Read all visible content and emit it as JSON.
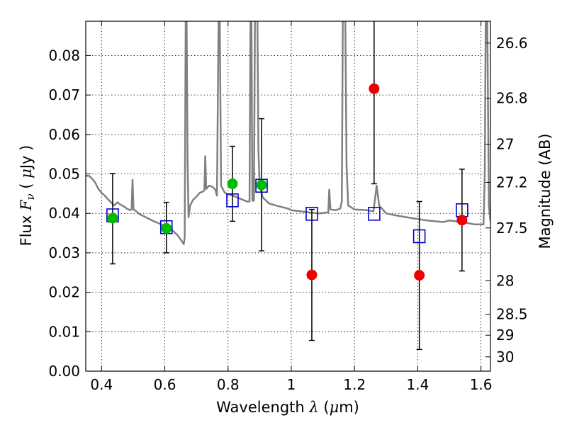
{
  "chart_data": {
    "type": "scatter",
    "xlabel": {
      "prefix": "Wavelength  ",
      "symbol": "λ",
      "unit_open": " (",
      "unit_mu": "μ",
      "unit_rest": "m)"
    },
    "ylabel": {
      "prefix": "Flux  ",
      "symbol": "F",
      "sub": "ν",
      "unit_open": "  ( ",
      "unit_mu": "μ",
      "unit_rest": "Jy )"
    },
    "y2label": "Magnitude (AB)",
    "xlim": [
      0.35,
      1.63
    ],
    "ylim": [
      0.0,
      0.0887
    ],
    "grid": true,
    "x_ticks": [
      {
        "value": 0.4,
        "label": "0.4"
      },
      {
        "value": 0.6,
        "label": "0.6"
      },
      {
        "value": 0.8,
        "label": "0.8"
      },
      {
        "value": 1.0,
        "label": "1"
      },
      {
        "value": 1.2,
        "label": "1.2"
      },
      {
        "value": 1.4,
        "label": "1.4"
      },
      {
        "value": 1.6,
        "label": "1.6"
      }
    ],
    "y_ticks": [
      {
        "value": 0.0,
        "label": "0.00"
      },
      {
        "value": 0.01,
        "label": "0.01"
      },
      {
        "value": 0.02,
        "label": "0.02"
      },
      {
        "value": 0.03,
        "label": "0.03"
      },
      {
        "value": 0.04,
        "label": "0.04"
      },
      {
        "value": 0.05,
        "label": "0.05"
      },
      {
        "value": 0.06,
        "label": "0.06"
      },
      {
        "value": 0.07,
        "label": "0.07"
      },
      {
        "value": 0.08,
        "label": "0.08"
      }
    ],
    "y2_ticks": [
      {
        "mag": 26.6,
        "label": "26.6"
      },
      {
        "mag": 26.8,
        "label": "26.8"
      },
      {
        "mag": 27.0,
        "label": "27"
      },
      {
        "mag": 27.2,
        "label": "27.2"
      },
      {
        "mag": 27.5,
        "label": "27.5"
      },
      {
        "mag": 28.0,
        "label": "28"
      },
      {
        "mag": 28.5,
        "label": "28.5"
      },
      {
        "mag": 29.0,
        "label": "29"
      },
      {
        "mag": 30.0,
        "label": "30"
      }
    ],
    "colors": {
      "template": "#808080",
      "model_photometry": "#0000cc",
      "detection": "#00bb00",
      "non_detection": "#ee0000",
      "errorbar": "#000000"
    },
    "series": [
      {
        "kind": "template",
        "points": [
          [
            0.35,
            0.0495
          ],
          [
            0.36,
            0.0495
          ],
          [
            0.37,
            0.0488
          ],
          [
            0.38,
            0.0478
          ],
          [
            0.39,
            0.0462
          ],
          [
            0.4,
            0.0452
          ],
          [
            0.41,
            0.0445
          ],
          [
            0.42,
            0.0436
          ],
          [
            0.43,
            0.0428
          ],
          [
            0.44,
            0.042
          ],
          [
            0.45,
            0.0428
          ],
          [
            0.46,
            0.0422
          ],
          [
            0.47,
            0.0418
          ],
          [
            0.48,
            0.0412
          ],
          [
            0.49,
            0.0408
          ],
          [
            0.495,
            0.041
          ],
          [
            0.498,
            0.0485
          ],
          [
            0.501,
            0.041
          ],
          [
            0.51,
            0.0405
          ],
          [
            0.52,
            0.0398
          ],
          [
            0.54,
            0.039
          ],
          [
            0.56,
            0.0382
          ],
          [
            0.58,
            0.0375
          ],
          [
            0.6,
            0.0368
          ],
          [
            0.62,
            0.036
          ],
          [
            0.64,
            0.0345
          ],
          [
            0.655,
            0.0328
          ],
          [
            0.66,
            0.0322
          ],
          [
            0.663,
            0.034
          ],
          [
            0.666,
            0.089
          ],
          [
            0.669,
            0.089
          ],
          [
            0.672,
            0.054
          ],
          [
            0.675,
            0.039
          ],
          [
            0.68,
            0.042
          ],
          [
            0.69,
            0.0435
          ],
          [
            0.7,
            0.0442
          ],
          [
            0.71,
            0.0452
          ],
          [
            0.72,
            0.0455
          ],
          [
            0.725,
            0.0458
          ],
          [
            0.728,
            0.0545
          ],
          [
            0.731,
            0.0462
          ],
          [
            0.74,
            0.047
          ],
          [
            0.75,
            0.0468
          ],
          [
            0.76,
            0.046
          ],
          [
            0.765,
            0.0445
          ],
          [
            0.77,
            0.089
          ],
          [
            0.774,
            0.089
          ],
          [
            0.778,
            0.047
          ],
          [
            0.79,
            0.0452
          ],
          [
            0.8,
            0.0448
          ],
          [
            0.815,
            0.0445
          ],
          [
            0.83,
            0.044
          ],
          [
            0.845,
            0.0435
          ],
          [
            0.86,
            0.043
          ],
          [
            0.868,
            0.043
          ],
          [
            0.871,
            0.089
          ],
          [
            0.874,
            0.089
          ],
          [
            0.877,
            0.0432
          ],
          [
            0.882,
            0.0432
          ],
          [
            0.885,
            0.089
          ],
          [
            0.889,
            0.089
          ],
          [
            0.893,
            0.089
          ],
          [
            0.896,
            0.056
          ],
          [
            0.9,
            0.047
          ],
          [
            0.91,
            0.044
          ],
          [
            0.93,
            0.0425
          ],
          [
            0.96,
            0.0418
          ],
          [
            0.99,
            0.0412
          ],
          [
            1.0,
            0.0408
          ],
          [
            1.03,
            0.0405
          ],
          [
            1.06,
            0.0402
          ],
          [
            1.09,
            0.04
          ],
          [
            1.11,
            0.0402
          ],
          [
            1.117,
            0.0402
          ],
          [
            1.12,
            0.046
          ],
          [
            1.124,
            0.041
          ],
          [
            1.14,
            0.0408
          ],
          [
            1.155,
            0.0412
          ],
          [
            1.16,
            0.043
          ],
          [
            1.163,
            0.089
          ],
          [
            1.167,
            0.089
          ],
          [
            1.171,
            0.089
          ],
          [
            1.175,
            0.052
          ],
          [
            1.18,
            0.042
          ],
          [
            1.2,
            0.041
          ],
          [
            1.24,
            0.0408
          ],
          [
            1.26,
            0.0405
          ],
          [
            1.27,
            0.047
          ],
          [
            1.278,
            0.042
          ],
          [
            1.3,
            0.04
          ],
          [
            1.33,
            0.0395
          ],
          [
            1.38,
            0.0388
          ],
          [
            1.43,
            0.0382
          ],
          [
            1.48,
            0.0378
          ],
          [
            1.5,
            0.0382
          ],
          [
            1.54,
            0.0378
          ],
          [
            1.58,
            0.0372
          ],
          [
            1.6,
            0.0372
          ],
          [
            1.608,
            0.0372
          ],
          [
            1.612,
            0.05
          ],
          [
            1.615,
            0.089
          ],
          [
            1.62,
            0.089
          ],
          [
            1.625,
            0.042
          ],
          [
            1.63,
            0.038
          ]
        ]
      },
      {
        "kind": "model_photometry",
        "points": [
          [
            0.435,
            0.0395
          ],
          [
            0.605,
            0.0365
          ],
          [
            0.814,
            0.0433
          ],
          [
            0.906,
            0.047
          ],
          [
            1.065,
            0.0399
          ],
          [
            1.262,
            0.0399
          ],
          [
            1.405,
            0.0342
          ],
          [
            1.54,
            0.0408
          ]
        ]
      },
      {
        "kind": "detection",
        "points": [
          {
            "x": 0.435,
            "y": 0.0388,
            "yerr_low": 0.0272,
            "yerr_high": 0.0501
          },
          {
            "x": 0.605,
            "y": 0.0362,
            "yerr_low": 0.03,
            "yerr_high": 0.0428
          },
          {
            "x": 0.814,
            "y": 0.0475,
            "yerr_low": 0.038,
            "yerr_high": 0.057
          },
          {
            "x": 0.906,
            "y": 0.0472,
            "yerr_low": 0.0305,
            "yerr_high": 0.064
          }
        ]
      },
      {
        "kind": "non_detection",
        "points": [
          {
            "x": 1.065,
            "y": 0.0244,
            "yerr_low": 0.0078,
            "yerr_high": 0.041
          },
          {
            "x": 1.262,
            "y": 0.0716,
            "yerr_low": 0.0475,
            "yerr_high": 0.089
          },
          {
            "x": 1.405,
            "y": 0.0243,
            "yerr_low": 0.0055,
            "yerr_high": 0.043
          },
          {
            "x": 1.54,
            "y": 0.0383,
            "yerr_low": 0.0254,
            "yerr_high": 0.0512
          }
        ]
      }
    ]
  }
}
